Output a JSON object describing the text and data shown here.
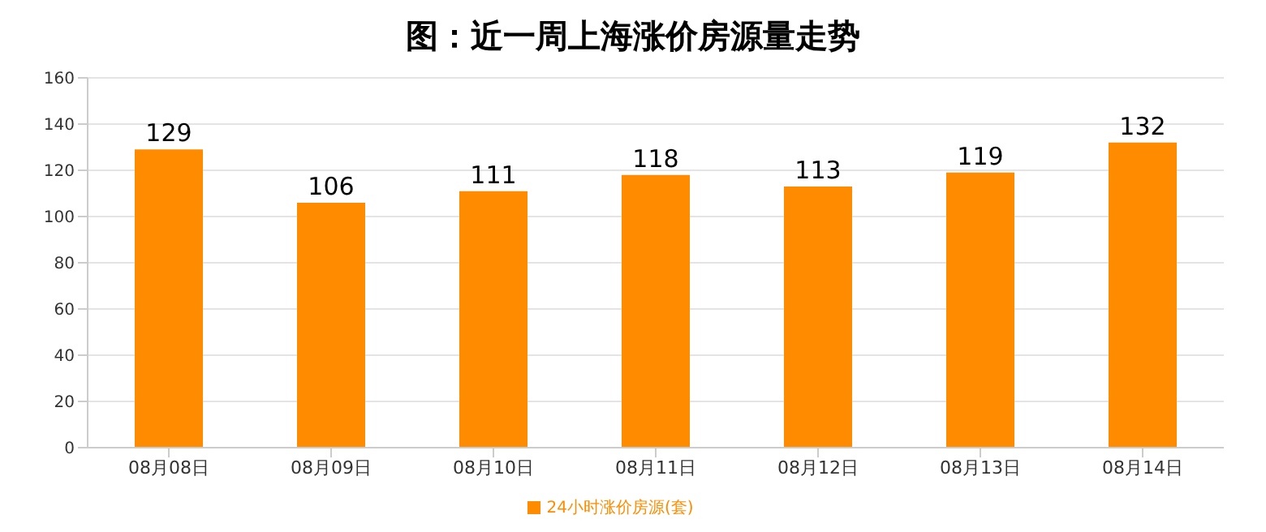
{
  "chart_data": {
    "type": "bar",
    "title": "图：近一周上海涨价房源量走势",
    "categories": [
      "08月08日",
      "08月09日",
      "08月10日",
      "08月11日",
      "08月12日",
      "08月13日",
      "08月14日"
    ],
    "series": [
      {
        "name": "24小时涨价房源(套)",
        "color": "#ff8c00",
        "values": [
          129,
          106,
          111,
          118,
          113,
          119,
          132
        ]
      }
    ],
    "ylim": [
      0,
      160
    ],
    "yticks": [
      0,
      20,
      40,
      60,
      80,
      100,
      120,
      140,
      160
    ],
    "grid": "y",
    "legend": "bottom",
    "data_labels": true
  }
}
